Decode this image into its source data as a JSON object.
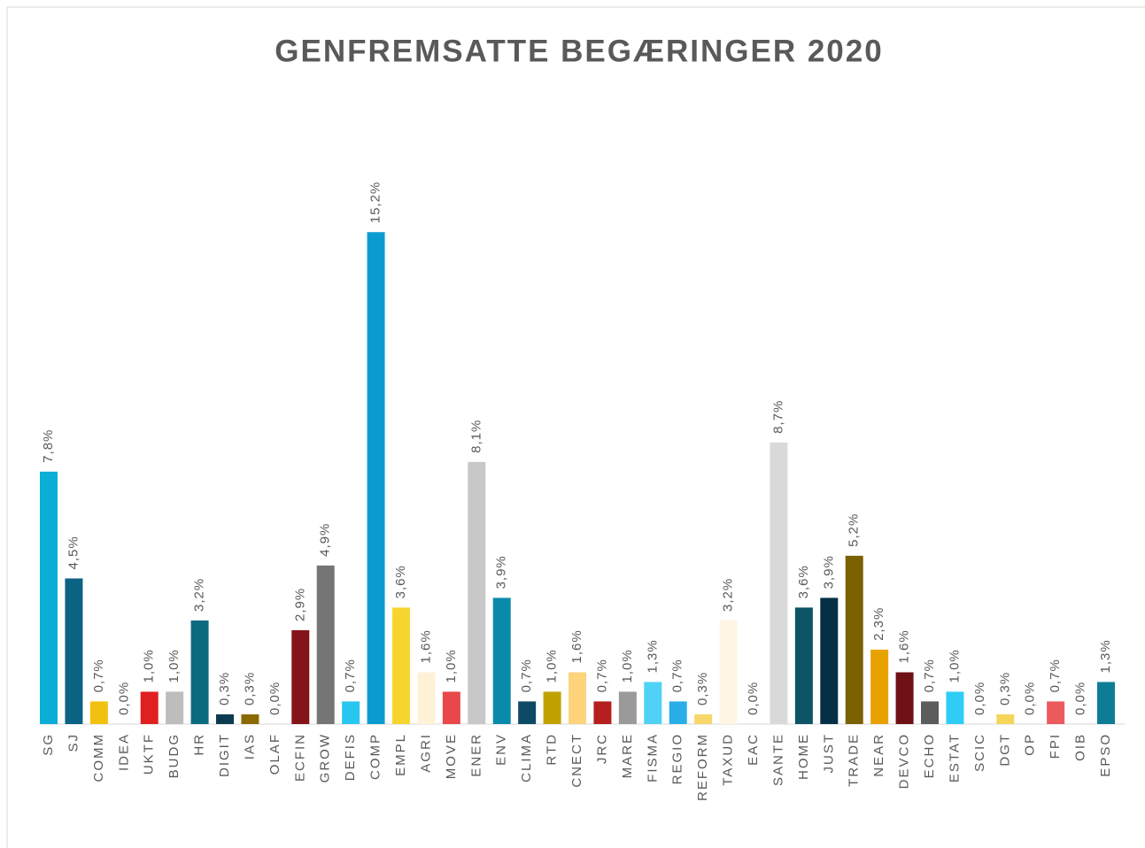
{
  "chart_data": {
    "type": "bar",
    "title": "GENFREMSATTE BEGÆRINGER 2020",
    "categories": [
      "SG",
      "SJ",
      "COMM",
      "IDEA",
      "UKTF",
      "BUDG",
      "HR",
      "DIGIT",
      "IAS",
      "OLAF",
      "ECFIN",
      "GROW",
      "DEFIS",
      "COMP",
      "EMPL",
      "AGRI",
      "MOVE",
      "ENER",
      "ENV",
      "CLIMA",
      "RTD",
      "CNECT",
      "JRC",
      "MARE",
      "FISMA",
      "REGIO",
      "REFORM",
      "TAXUD",
      "EAC",
      "SANTE",
      "HOME",
      "JUST",
      "TRADE",
      "NEAR",
      "DEVCO",
      "ECHO",
      "ESTAT",
      "SCIC",
      "DGT",
      "OP",
      "FPI",
      "OIB",
      "EPSO"
    ],
    "values": [
      7.8,
      4.5,
      0.7,
      0.0,
      1.0,
      1.0,
      3.2,
      0.3,
      0.3,
      0.0,
      2.9,
      4.9,
      0.7,
      15.2,
      3.6,
      1.6,
      1.0,
      8.1,
      3.9,
      0.7,
      1.0,
      1.6,
      0.7,
      1.0,
      1.3,
      0.7,
      0.3,
      3.2,
      0.0,
      8.7,
      3.6,
      3.9,
      5.2,
      2.3,
      1.6,
      0.7,
      1.0,
      0.0,
      0.3,
      0.0,
      0.7,
      0.0,
      1.3
    ],
    "value_labels": [
      "7,8%",
      "4,5%",
      "0,7%",
      "0,0%",
      "1,0%",
      "1,0%",
      "3,2%",
      "0,3%",
      "0,3%",
      "0,0%",
      "2,9%",
      "4,9%",
      "0,7%",
      "15,2%",
      "3,6%",
      "1,6%",
      "1,0%",
      "8,1%",
      "3,9%",
      "0,7%",
      "1,0%",
      "1,6%",
      "0,7%",
      "1,0%",
      "1,3%",
      "0,7%",
      "0,3%",
      "3,2%",
      "0,0%",
      "8,7%",
      "3,6%",
      "3,9%",
      "5,2%",
      "2,3%",
      "1,6%",
      "0,7%",
      "1,0%",
      "0,0%",
      "0,3%",
      "0,0%",
      "0,7%",
      "0,0%",
      "1,3%"
    ],
    "colors": [
      "#0aaed6",
      "#0b6384",
      "#f2c10f",
      "#cccccc",
      "#e02020",
      "#bdbdbd",
      "#0b6a7e",
      "#0c3b50",
      "#8b6a00",
      "#999999",
      "#841419",
      "#757575",
      "#29c7f0",
      "#0c9bd0",
      "#f7d531",
      "#fff1d6",
      "#e8484a",
      "#c8c8c8",
      "#0a8aab",
      "#0c4a66",
      "#c1a100",
      "#fdd37c",
      "#b51f1f",
      "#9a9a9a",
      "#4fd2f5",
      "#29aee8",
      "#f7d66a",
      "#fff5e3",
      "#cccccc",
      "#d9d9d9",
      "#0c5466",
      "#062f45",
      "#7b6000",
      "#e8a200",
      "#6e1014",
      "#5c5c5c",
      "#2fcdf5",
      "#cccccc",
      "#f5d55a",
      "#cccccc",
      "#eb5a5d",
      "#cccccc",
      "#0d7d95"
    ],
    "ylim": [
      0,
      16
    ]
  }
}
